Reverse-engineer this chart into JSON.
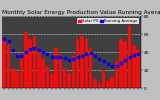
{
  "title": "Monthly Solar Energy Production Value Running Average",
  "bar_color": "#ee1111",
  "avg_color": "#0000ee",
  "bar_edge_color": "#cc0000",
  "plot_bg_color": "#404040",
  "fig_bg_color": "#c0c0c0",
  "grid_color": "#ffffff",
  "values": [
    55,
    48,
    22,
    18,
    35,
    62,
    55,
    58,
    42,
    32,
    25,
    16,
    45,
    38,
    22,
    17,
    36,
    55,
    58,
    54,
    44,
    10,
    6,
    20,
    8,
    12,
    30,
    55,
    52,
    70,
    48,
    42
  ],
  "running_avg": [
    55,
    52,
    42,
    36,
    36,
    40,
    43,
    45,
    42,
    40,
    38,
    34,
    35,
    35,
    33,
    31,
    32,
    34,
    36,
    38,
    39,
    36,
    32,
    30,
    27,
    25,
    25,
    28,
    31,
    35,
    37,
    38
  ],
  "ylim": [
    0,
    80
  ],
  "yticks": [
    0,
    20,
    40,
    60,
    80
  ],
  "legend_labels": [
    "Solar PV",
    "Running Average"
  ],
  "title_fontsize": 4.2,
  "axis_fontsize": 3.2,
  "legend_fontsize": 2.8
}
